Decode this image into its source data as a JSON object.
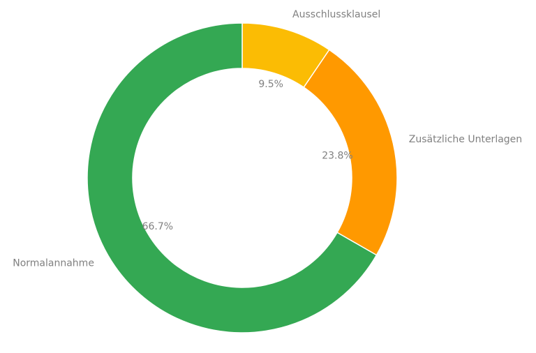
{
  "chart_data": {
    "type": "pie",
    "variant": "donut",
    "categories": [
      "Ausschlussklausel",
      "Zusätzliche Unterlagen",
      "Normalannahme"
    ],
    "values": [
      9.5,
      23.8,
      66.7
    ],
    "percent_labels": [
      "9.5%",
      "23.8%",
      "66.7%"
    ],
    "colors": [
      "#fbbc04",
      "#ff9900",
      "#34a853"
    ],
    "label_color": "#808080",
    "start": "12 o'clock",
    "direction": "clockwise",
    "title": ""
  }
}
